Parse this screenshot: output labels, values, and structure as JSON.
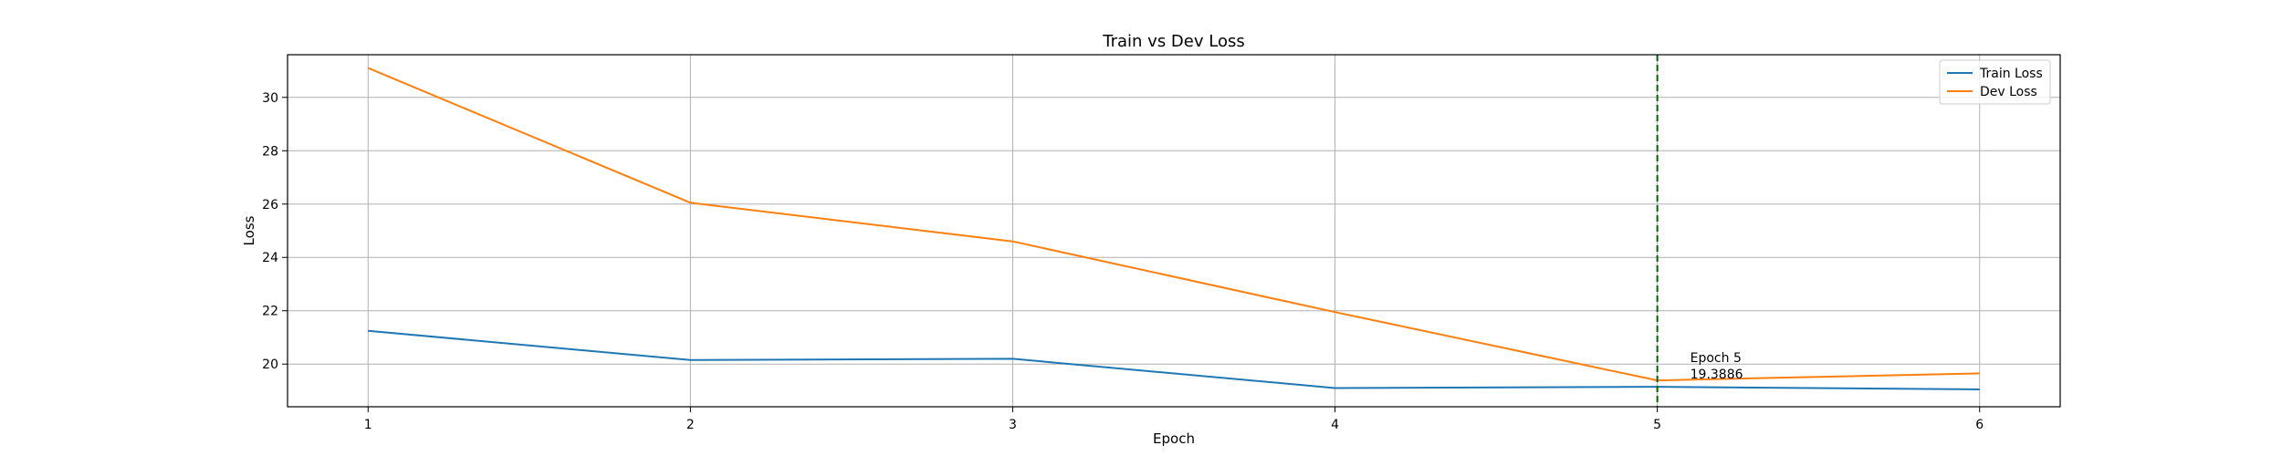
{
  "chart_data": {
    "type": "line",
    "title": "Train vs Dev Loss",
    "xlabel": "Epoch",
    "ylabel": "Loss",
    "x": [
      1,
      2,
      3,
      4,
      5,
      6
    ],
    "xlim": [
      0.75,
      6.25
    ],
    "ylim": [
      18.4,
      31.6
    ],
    "xticks": [
      1,
      2,
      3,
      4,
      5,
      6
    ],
    "yticks": [
      20,
      22,
      24,
      26,
      28,
      30
    ],
    "grid": true,
    "legend_position": "top-right",
    "series": [
      {
        "name": "Train Loss",
        "color": "#1f77b4",
        "values": [
          21.25,
          20.15,
          20.2,
          19.1,
          19.15,
          19.05
        ]
      },
      {
        "name": "Dev Loss",
        "color": "#ff7f0e",
        "values": [
          31.1,
          26.05,
          24.6,
          21.95,
          19.3886,
          19.65
        ]
      }
    ],
    "vline": {
      "x": 5,
      "color": "#006400",
      "style": "dashed"
    },
    "annotation": {
      "x": 5,
      "y": 19.3886,
      "line1": "Epoch 5",
      "line2": "19.3886"
    }
  }
}
